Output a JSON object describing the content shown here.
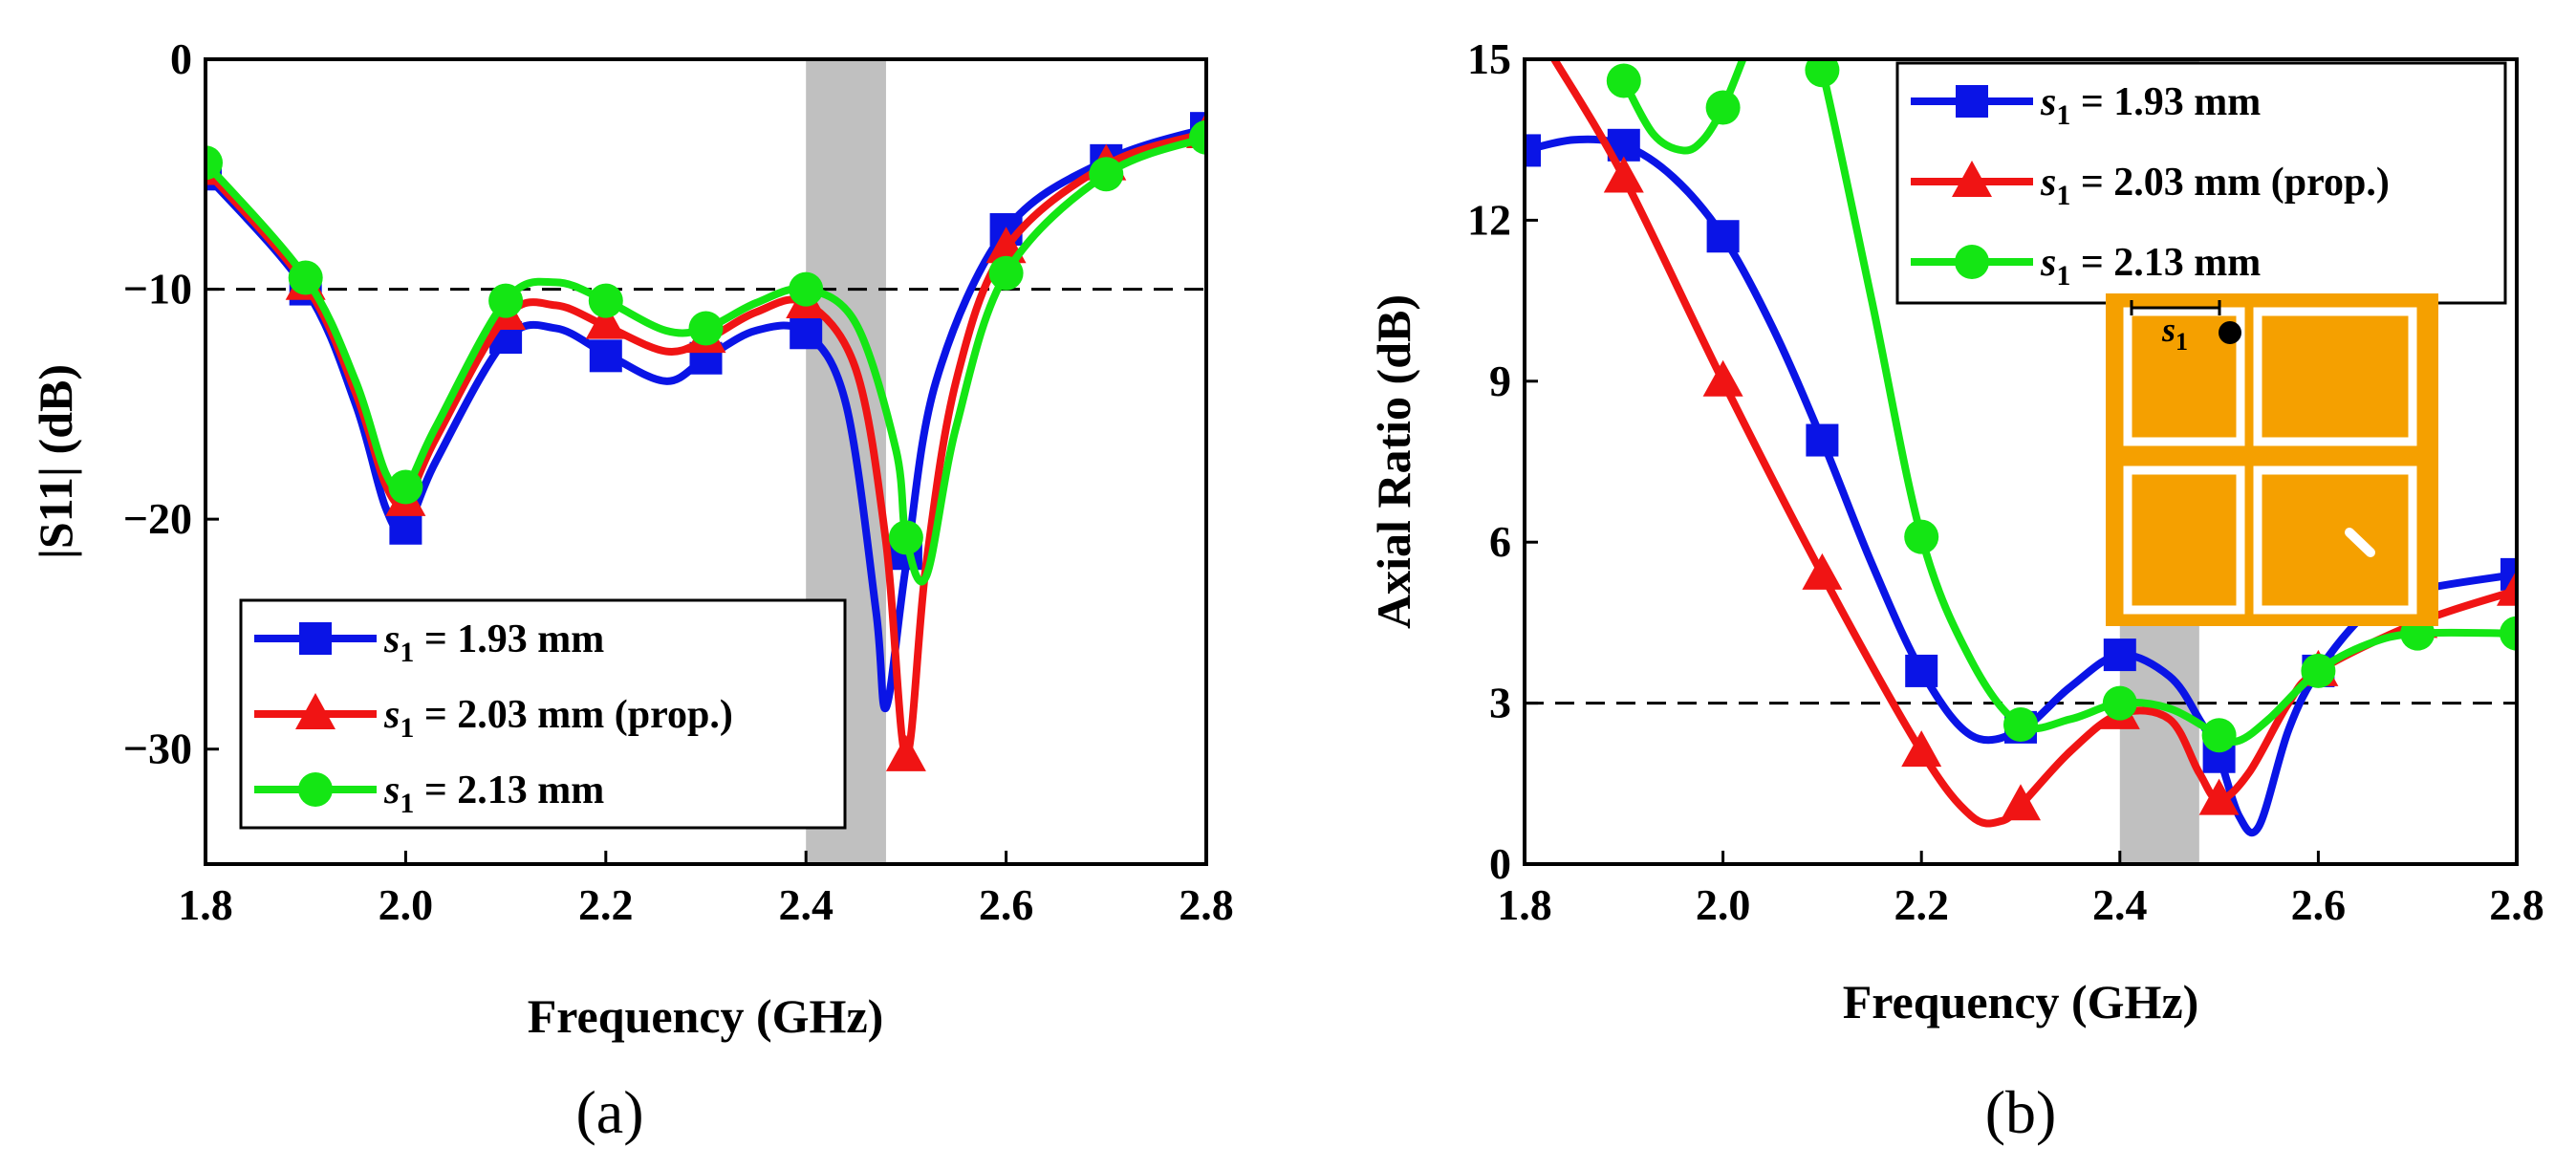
{
  "figure": {
    "panels": [
      {
        "label": "(a)"
      },
      {
        "label": "(b)"
      }
    ]
  },
  "chart_data": [
    {
      "type": "line",
      "panel": "(a)",
      "xlabel": "Frequency (GHz)",
      "ylabel": "|S11| (dB)",
      "xlim": [
        1.8,
        2.8
      ],
      "ylim": [
        -35,
        0
      ],
      "xticks": [
        1.8,
        2.0,
        2.2,
        2.4,
        2.6,
        2.8
      ],
      "xtick_labels": [
        "1.8",
        "2.0",
        "2.2",
        "2.4",
        "2.6",
        "2.8"
      ],
      "yticks": [
        0,
        -10,
        -20,
        -30
      ],
      "ytick_labels": [
        "0",
        "−10",
        "−20",
        "−30"
      ],
      "reference_line": {
        "y": -10,
        "style": "dashed"
      },
      "shaded_band": {
        "x": [
          2.4,
          2.48
        ],
        "color": "#c0c0c0"
      },
      "legend": {
        "position": "bottom-left",
        "entries": [
          {
            "sym": "s",
            "sub": "1",
            "text": " = 1.93 mm"
          },
          {
            "sym": "s",
            "sub": "1",
            "text": " = 2.03 mm (prop.)"
          },
          {
            "sym": "s",
            "sub": "1",
            "text": " = 2.13 mm"
          }
        ]
      },
      "series": [
        {
          "name": "s1 = 1.93 mm",
          "color": "#0a14e6",
          "marker": "square",
          "curve": [
            [
              1.8,
              -5
            ],
            [
              1.9,
              -10
            ],
            [
              1.95,
              -15
            ],
            [
              1.98,
              -19.5
            ],
            [
              2.0,
              -20.4
            ],
            [
              2.03,
              -17.5
            ],
            [
              2.1,
              -12.2
            ],
            [
              2.15,
              -11.7
            ],
            [
              2.2,
              -12.8
            ],
            [
              2.26,
              -14
            ],
            [
              2.3,
              -13
            ],
            [
              2.35,
              -11.8
            ],
            [
              2.4,
              -11.9
            ],
            [
              2.44,
              -15
            ],
            [
              2.47,
              -24
            ],
            [
              2.48,
              -28.2
            ],
            [
              2.5,
              -22
            ],
            [
              2.53,
              -14
            ],
            [
              2.6,
              -7.4
            ],
            [
              2.7,
              -4.4
            ],
            [
              2.8,
              -3
            ]
          ],
          "points": [
            [
              1.8,
              -5
            ],
            [
              1.9,
              -10
            ],
            [
              2.0,
              -20.4
            ],
            [
              2.1,
              -12.1
            ],
            [
              2.2,
              -12.9
            ],
            [
              2.3,
              -13
            ],
            [
              2.4,
              -11.9
            ],
            [
              2.5,
              -21.5
            ],
            [
              2.6,
              -7.4
            ],
            [
              2.7,
              -4.4
            ],
            [
              2.8,
              -3
            ]
          ]
        },
        {
          "name": "s1 = 2.03 mm (prop.)",
          "color": "#f01414",
          "marker": "triangle",
          "curve": [
            [
              1.8,
              -4.8
            ],
            [
              1.9,
              -9.8
            ],
            [
              1.95,
              -14.5
            ],
            [
              1.98,
              -18.5
            ],
            [
              2.0,
              -19.2
            ],
            [
              2.03,
              -16.5
            ],
            [
              2.1,
              -11.2
            ],
            [
              2.15,
              -10.7
            ],
            [
              2.2,
              -11.6
            ],
            [
              2.26,
              -12.7
            ],
            [
              2.3,
              -12.2
            ],
            [
              2.35,
              -11
            ],
            [
              2.4,
              -10.6
            ],
            [
              2.45,
              -13.5
            ],
            [
              2.48,
              -21
            ],
            [
              2.5,
              -30.3
            ],
            [
              2.52,
              -22
            ],
            [
              2.55,
              -14
            ],
            [
              2.6,
              -8.2
            ],
            [
              2.7,
              -4.6
            ],
            [
              2.8,
              -3.2
            ]
          ],
          "points": [
            [
              1.8,
              -4.8
            ],
            [
              1.9,
              -9.8
            ],
            [
              2.0,
              -19.2
            ],
            [
              2.1,
              -11.1
            ],
            [
              2.2,
              -11.5
            ],
            [
              2.3,
              -12.1
            ],
            [
              2.4,
              -10.6
            ],
            [
              2.5,
              -30.3
            ],
            [
              2.6,
              -8.2
            ],
            [
              2.7,
              -4.6
            ],
            [
              2.8,
              -3.2
            ]
          ]
        },
        {
          "name": "s1 = 2.13 mm",
          "color": "#14e614",
          "marker": "circle",
          "curve": [
            [
              1.8,
              -4.5
            ],
            [
              1.9,
              -9.5
            ],
            [
              1.95,
              -14
            ],
            [
              1.98,
              -18
            ],
            [
              2.0,
              -18.6
            ],
            [
              2.03,
              -16
            ],
            [
              2.1,
              -10.5
            ],
            [
              2.15,
              -9.7
            ],
            [
              2.2,
              -10.5
            ],
            [
              2.26,
              -11.8
            ],
            [
              2.3,
              -11.7
            ],
            [
              2.35,
              -10.6
            ],
            [
              2.4,
              -10
            ],
            [
              2.45,
              -11.5
            ],
            [
              2.49,
              -17
            ],
            [
              2.5,
              -20.8
            ],
            [
              2.52,
              -22.5
            ],
            [
              2.55,
              -16
            ],
            [
              2.6,
              -9.3
            ],
            [
              2.7,
              -5
            ],
            [
              2.8,
              -3.4
            ]
          ],
          "points": [
            [
              1.8,
              -4.5
            ],
            [
              1.9,
              -9.5
            ],
            [
              2.0,
              -18.6
            ],
            [
              2.1,
              -10.5
            ],
            [
              2.2,
              -10.5
            ],
            [
              2.3,
              -11.7
            ],
            [
              2.4,
              -10
            ],
            [
              2.5,
              -20.8
            ],
            [
              2.6,
              -9.3
            ],
            [
              2.7,
              -5
            ],
            [
              2.8,
              -3.4
            ]
          ]
        }
      ]
    },
    {
      "type": "line",
      "panel": "(b)",
      "xlabel": "Frequency (GHz)",
      "ylabel": "Axial Ratio (dB)",
      "xlim": [
        1.8,
        2.8
      ],
      "ylim": [
        0,
        15
      ],
      "xticks": [
        1.8,
        2.0,
        2.2,
        2.4,
        2.6,
        2.8
      ],
      "xtick_labels": [
        "1.8",
        "2.0",
        "2.2",
        "2.4",
        "2.6",
        "2.8"
      ],
      "yticks": [
        0,
        3,
        6,
        9,
        12,
        15
      ],
      "ytick_labels": [
        "0",
        "3",
        "6",
        "9",
        "12",
        "15"
      ],
      "reference_line": {
        "y": 3,
        "style": "dashed"
      },
      "shaded_band": {
        "x": [
          2.4,
          2.48
        ],
        "color": "#c0c0c0"
      },
      "legend": {
        "position": "top-right",
        "entries": [
          {
            "sym": "s",
            "sub": "1",
            "text": " = 1.93 mm"
          },
          {
            "sym": "s",
            "sub": "1",
            "text": " = 2.03 mm (prop.)"
          },
          {
            "sym": "s",
            "sub": "1",
            "text": " = 2.13 mm"
          }
        ]
      },
      "inset": {
        "label_sym": "s",
        "label_sub": "1",
        "patch_color": "#f5a000",
        "line_color": "#ffffff"
      },
      "series": [
        {
          "name": "s1 = 1.93 mm",
          "color": "#0a14e6",
          "marker": "square",
          "curve": [
            [
              1.8,
              13.3
            ],
            [
              1.85,
              13.5
            ],
            [
              1.9,
              13.4
            ],
            [
              1.95,
              12.8
            ],
            [
              2.0,
              11.7
            ],
            [
              2.05,
              10
            ],
            [
              2.1,
              7.9
            ],
            [
              2.15,
              5.6
            ],
            [
              2.2,
              3.6
            ],
            [
              2.25,
              2.4
            ],
            [
              2.3,
              2.5
            ],
            [
              2.35,
              3.3
            ],
            [
              2.4,
              3.9
            ],
            [
              2.45,
              3.5
            ],
            [
              2.48,
              2.7
            ],
            [
              2.5,
              2
            ],
            [
              2.52,
              0.9
            ],
            [
              2.54,
              0.7
            ],
            [
              2.57,
              2.5
            ],
            [
              2.6,
              3.6
            ],
            [
              2.65,
              4.7
            ],
            [
              2.7,
              5.1
            ],
            [
              2.8,
              5.4
            ]
          ],
          "points": [
            [
              1.8,
              13.3
            ],
            [
              1.9,
              13.4
            ],
            [
              2.0,
              11.7
            ],
            [
              2.1,
              7.9
            ],
            [
              2.2,
              3.6
            ],
            [
              2.3,
              2.55
            ],
            [
              2.4,
              3.9
            ],
            [
              2.5,
              2
            ],
            [
              2.6,
              3.6
            ],
            [
              2.7,
              5.1
            ],
            [
              2.8,
              5.4
            ]
          ]
        },
        {
          "name": "s1 = 2.03 mm (prop.)",
          "color": "#f01414",
          "marker": "triangle",
          "curve": [
            [
              1.83,
              15
            ],
            [
              1.9,
              12.8
            ],
            [
              2.0,
              9
            ],
            [
              2.1,
              5.4
            ],
            [
              2.2,
              2.1
            ],
            [
              2.25,
              0.9
            ],
            [
              2.28,
              0.8
            ],
            [
              2.3,
              1.1
            ],
            [
              2.35,
              2.1
            ],
            [
              2.4,
              2.8
            ],
            [
              2.45,
              2.7
            ],
            [
              2.48,
              1.7
            ],
            [
              2.5,
              1.2
            ],
            [
              2.53,
              1.7
            ],
            [
              2.57,
              3
            ],
            [
              2.6,
              3.6
            ],
            [
              2.7,
              4.5
            ],
            [
              2.8,
              5.1
            ]
          ],
          "points": [
            [
              1.9,
              12.8
            ],
            [
              2.0,
              9
            ],
            [
              2.1,
              5.4
            ],
            [
              2.2,
              2.1
            ],
            [
              2.3,
              1.1
            ],
            [
              2.4,
              2.8
            ],
            [
              2.5,
              1.2
            ],
            [
              2.6,
              3.6
            ],
            [
              2.7,
              4.5
            ],
            [
              2.8,
              5.1
            ]
          ]
        },
        {
          "name": "s1 = 2.13 mm",
          "color": "#14e614",
          "marker": "circle",
          "curve": [
            [
              1.9,
              14.6
            ],
            [
              1.93,
              13.6
            ],
            [
              1.96,
              13.3
            ],
            [
              1.98,
              13.5
            ],
            [
              2.0,
              14.1
            ],
            [
              2.02,
              15
            ]
          ],
          "curve2": [
            [
              2.09,
              15
            ],
            [
              2.1,
              14.8
            ],
            [
              2.15,
              10.5
            ],
            [
              2.2,
              6.1
            ],
            [
              2.25,
              3.8
            ],
            [
              2.3,
              2.6
            ],
            [
              2.35,
              2.7
            ],
            [
              2.4,
              3
            ],
            [
              2.45,
              2.9
            ],
            [
              2.5,
              2.4
            ],
            [
              2.52,
              2.3
            ],
            [
              2.55,
              2.7
            ],
            [
              2.6,
              3.6
            ],
            [
              2.65,
              4.1
            ],
            [
              2.7,
              4.3
            ],
            [
              2.8,
              4.3
            ]
          ],
          "points": [
            [
              1.9,
              14.6
            ],
            [
              2.0,
              14.1
            ],
            [
              2.1,
              14.8
            ],
            [
              2.2,
              6.1
            ],
            [
              2.3,
              2.6
            ],
            [
              2.4,
              3
            ],
            [
              2.5,
              2.4
            ],
            [
              2.6,
              3.6
            ],
            [
              2.7,
              4.3
            ],
            [
              2.8,
              4.3
            ]
          ]
        }
      ]
    }
  ]
}
